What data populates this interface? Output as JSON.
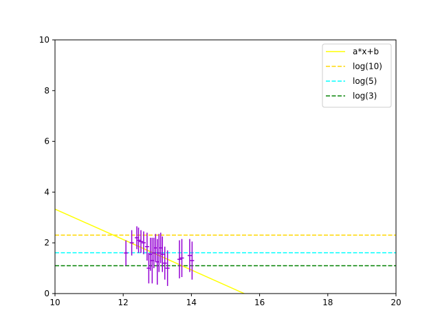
{
  "chart_data": {
    "type": "line",
    "xlim": [
      10,
      20
    ],
    "ylim": [
      0,
      10
    ],
    "x_ticks": [
      "10",
      "12",
      "14",
      "16",
      "18",
      "20"
    ],
    "y_ticks": [
      "0",
      "2",
      "4",
      "6",
      "8",
      "10"
    ],
    "grid": false,
    "legend_placement": "top-right",
    "fit_line": {
      "name": "a*x+b",
      "color": "#ffff00",
      "points": [
        [
          10,
          3.33
        ],
        [
          15.55,
          0
        ]
      ]
    },
    "hlines": [
      {
        "name": "log(10)",
        "y": 2.303,
        "color": "#ffd700",
        "style": "dashed"
      },
      {
        "name": "log(5)",
        "y": 1.609,
        "color": "#00ffff",
        "style": "dashed"
      },
      {
        "name": "log(3)",
        "y": 1.099,
        "color": "#008000",
        "style": "dashed"
      }
    ],
    "errorbars": {
      "color": "#9400d3",
      "points": [
        {
          "x": 12.08,
          "y": 1.6,
          "err": 0.5
        },
        {
          "x": 12.25,
          "y": 2.0,
          "err": 0.5
        },
        {
          "x": 12.4,
          "y": 2.2,
          "err": 0.45
        },
        {
          "x": 12.45,
          "y": 2.1,
          "err": 0.5
        },
        {
          "x": 12.52,
          "y": 2.05,
          "err": 0.45
        },
        {
          "x": 12.6,
          "y": 2.0,
          "err": 0.45
        },
        {
          "x": 12.7,
          "y": 1.85,
          "err": 0.55
        },
        {
          "x": 12.75,
          "y": 1.0,
          "err": 0.6
        },
        {
          "x": 12.8,
          "y": 1.55,
          "err": 0.65
        },
        {
          "x": 12.85,
          "y": 1.3,
          "err": 0.9
        },
        {
          "x": 12.9,
          "y": 1.6,
          "err": 0.6
        },
        {
          "x": 12.95,
          "y": 1.8,
          "err": 0.55
        },
        {
          "x": 13.0,
          "y": 1.25,
          "err": 0.9
        },
        {
          "x": 13.05,
          "y": 1.6,
          "err": 0.75
        },
        {
          "x": 13.1,
          "y": 1.8,
          "err": 0.6
        },
        {
          "x": 13.15,
          "y": 1.55,
          "err": 0.7
        },
        {
          "x": 13.22,
          "y": 1.2,
          "err": 0.65
        },
        {
          "x": 13.3,
          "y": 1.0,
          "err": 0.7
        },
        {
          "x": 13.65,
          "y": 1.35,
          "err": 0.75
        },
        {
          "x": 13.72,
          "y": 1.4,
          "err": 0.75
        },
        {
          "x": 13.95,
          "y": 1.5,
          "err": 0.65
        },
        {
          "x": 14.02,
          "y": 1.3,
          "err": 0.75
        }
      ]
    }
  }
}
